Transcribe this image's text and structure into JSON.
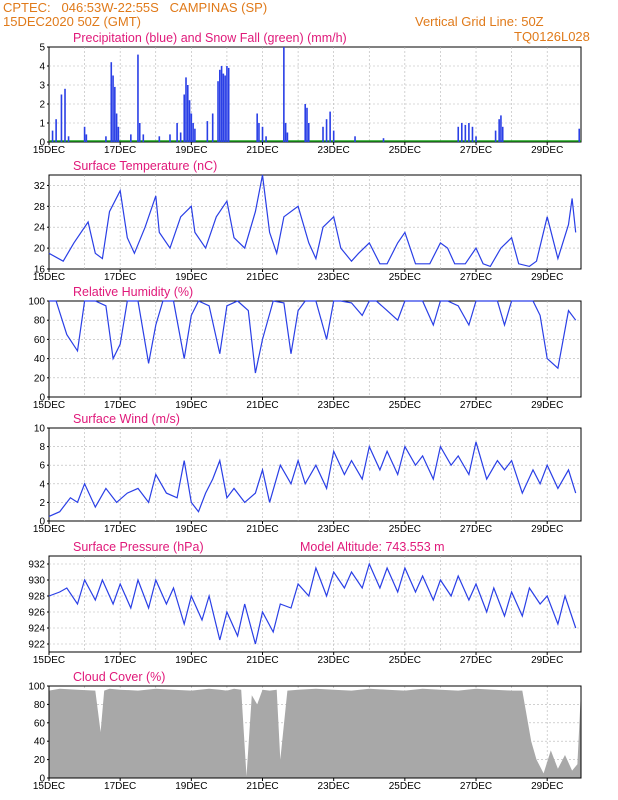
{
  "header": {
    "line1": "CPTEC:   046:53W-22:55S   CAMPINAS (SP)",
    "line2": "15DEC2020 50Z (GMT)",
    "right1": "Vertical Grid Line: 50Z",
    "right2": "TQ0126L028"
  },
  "colors": {
    "header": "#e07a1a",
    "title": "#e0197a",
    "line": "#2a3fe6",
    "snow": "#1aa01a",
    "cloud": "#a8a8a8"
  },
  "x_ticks": [
    "15DEC",
    "17DEC",
    "19DEC",
    "21DEC",
    "23DEC",
    "25DEC",
    "27DEC",
    "29DEC"
  ],
  "chart_data": [
    {
      "type": "bar",
      "title": "Precipitation (blue) and Snow Fall (green) (mm/h)",
      "ylim": [
        0,
        5
      ],
      "yticks": [
        0,
        1,
        2,
        3,
        4,
        5
      ],
      "grid": true,
      "series": [
        {
          "name": "Precipitation",
          "points": [
            [
              15.1,
              0.6
            ],
            [
              15.2,
              1.2
            ],
            [
              15.35,
              2.5
            ],
            [
              15.45,
              2.8
            ],
            [
              15.55,
              0.3
            ],
            [
              16.0,
              0.8
            ],
            [
              16.05,
              0.4
            ],
            [
              16.6,
              0.3
            ],
            [
              16.75,
              4.2
            ],
            [
              16.8,
              3.5
            ],
            [
              16.85,
              2.9
            ],
            [
              16.9,
              1.5
            ],
            [
              16.95,
              0.8
            ],
            [
              17.3,
              0.4
            ],
            [
              17.5,
              4.6
            ],
            [
              17.55,
              1.0
            ],
            [
              17.65,
              0.4
            ],
            [
              18.1,
              0.3
            ],
            [
              18.4,
              0.4
            ],
            [
              18.6,
              1.0
            ],
            [
              18.7,
              0.5
            ],
            [
              18.8,
              2.5
            ],
            [
              18.85,
              3.4
            ],
            [
              18.9,
              3.0
            ],
            [
              18.95,
              2.2
            ],
            [
              19.0,
              1.5
            ],
            [
              19.05,
              1.0
            ],
            [
              19.1,
              0.7
            ],
            [
              19.45,
              1.1
            ],
            [
              19.6,
              1.5
            ],
            [
              19.75,
              3.2
            ],
            [
              19.8,
              3.8
            ],
            [
              19.85,
              4.0
            ],
            [
              19.9,
              3.6
            ],
            [
              19.95,
              3.5
            ],
            [
              20.0,
              4.0
            ],
            [
              20.05,
              3.9
            ],
            [
              20.85,
              1.5
            ],
            [
              20.9,
              1.0
            ],
            [
              21.0,
              0.8
            ],
            [
              21.1,
              0.3
            ],
            [
              21.6,
              5.0
            ],
            [
              21.65,
              1.0
            ],
            [
              21.7,
              0.5
            ],
            [
              22.2,
              2.0
            ],
            [
              22.25,
              1.8
            ],
            [
              22.3,
              1.0
            ],
            [
              22.7,
              0.8
            ],
            [
              22.8,
              1.2
            ],
            [
              22.9,
              1.6
            ],
            [
              23.0,
              0.6
            ],
            [
              23.6,
              0.3
            ],
            [
              24.4,
              0.2
            ],
            [
              26.5,
              0.8
            ],
            [
              26.6,
              1.0
            ],
            [
              26.7,
              0.9
            ],
            [
              26.8,
              1.0
            ],
            [
              26.9,
              0.8
            ],
            [
              27.0,
              0.3
            ],
            [
              27.55,
              0.6
            ],
            [
              27.65,
              1.2
            ],
            [
              27.7,
              1.4
            ],
            [
              27.75,
              0.8
            ],
            [
              29.9,
              0.7
            ]
          ]
        },
        {
          "name": "Snow Fall",
          "points": []
        }
      ]
    },
    {
      "type": "line",
      "title": "Surface Temperature (nC)",
      "ylim": [
        16,
        34
      ],
      "yticks": [
        16,
        20,
        24,
        28,
        32
      ],
      "grid": true,
      "x": [
        15.0,
        15.4,
        15.7,
        16.1,
        16.3,
        16.5,
        16.7,
        17.0,
        17.2,
        17.4,
        17.7,
        18.0,
        18.1,
        18.4,
        18.7,
        19.0,
        19.1,
        19.4,
        19.7,
        20.0,
        20.2,
        20.5,
        20.8,
        21.0,
        21.2,
        21.4,
        21.6,
        22.0,
        22.3,
        22.5,
        22.7,
        23.0,
        23.2,
        23.5,
        23.7,
        24.0,
        24.3,
        24.5,
        24.8,
        25.0,
        25.3,
        25.5,
        25.7,
        26.0,
        26.2,
        26.4,
        26.7,
        27.0,
        27.2,
        27.4,
        27.7,
        28.0,
        28.2,
        28.5,
        28.7,
        29.0,
        29.3,
        29.6,
        29.7,
        29.8
      ],
      "values": [
        19,
        17.5,
        21,
        25,
        19,
        18,
        27,
        31,
        22,
        19,
        24,
        30,
        23,
        20,
        26,
        28,
        23,
        20,
        26,
        29,
        22,
        20,
        27,
        34,
        23,
        19,
        26,
        28,
        21,
        18,
        24,
        26,
        20,
        17.5,
        19,
        21,
        17,
        17,
        21,
        23,
        17,
        17,
        17,
        21,
        20,
        17,
        17,
        20,
        17,
        16.5,
        20,
        22,
        17,
        16.5,
        17.5,
        26,
        18,
        24.5,
        29.5,
        23
      ]
    },
    {
      "type": "line",
      "title": "Relative Humidity (%)",
      "ylim": [
        0,
        100
      ],
      "yticks": [
        0,
        20,
        40,
        60,
        80,
        100
      ],
      "grid": true,
      "x": [
        15.0,
        15.2,
        15.5,
        15.8,
        16.0,
        16.3,
        16.6,
        16.8,
        17.0,
        17.2,
        17.5,
        17.8,
        18.0,
        18.2,
        18.5,
        18.8,
        19.0,
        19.2,
        19.5,
        19.8,
        20.0,
        20.3,
        20.6,
        20.8,
        21.0,
        21.3,
        21.6,
        21.8,
        22.0,
        22.2,
        22.5,
        22.8,
        23.0,
        23.2,
        23.5,
        23.8,
        24.0,
        24.2,
        24.5,
        24.8,
        25.0,
        25.2,
        25.5,
        25.8,
        26.0,
        26.2,
        26.5,
        26.8,
        27.0,
        27.3,
        27.6,
        27.8,
        28.0,
        28.3,
        28.6,
        28.8,
        29.0,
        29.3,
        29.6,
        29.8
      ],
      "values": [
        100,
        100,
        65,
        48,
        100,
        100,
        95,
        40,
        55,
        100,
        100,
        35,
        75,
        100,
        100,
        40,
        85,
        100,
        95,
        45,
        95,
        100,
        90,
        25,
        60,
        100,
        98,
        45,
        90,
        100,
        100,
        60,
        100,
        100,
        98,
        85,
        100,
        100,
        90,
        80,
        100,
        100,
        100,
        75,
        100,
        100,
        95,
        75,
        100,
        100,
        100,
        75,
        100,
        100,
        100,
        85,
        40,
        30,
        90,
        80
      ]
    },
    {
      "type": "line",
      "title": "Surface Wind (m/s)",
      "ylim": [
        0,
        10
      ],
      "yticks": [
        0,
        2,
        4,
        6,
        8,
        10
      ],
      "grid": true,
      "x": [
        15.0,
        15.3,
        15.6,
        15.8,
        16.0,
        16.3,
        16.6,
        16.9,
        17.2,
        17.5,
        17.8,
        18.0,
        18.3,
        18.6,
        18.8,
        19.0,
        19.2,
        19.4,
        19.6,
        19.8,
        20.0,
        20.2,
        20.5,
        20.8,
        21.0,
        21.2,
        21.5,
        21.8,
        22.0,
        22.2,
        22.5,
        22.8,
        23.0,
        23.3,
        23.5,
        23.8,
        24.0,
        24.3,
        24.5,
        24.8,
        25.0,
        25.3,
        25.5,
        25.8,
        26.0,
        26.3,
        26.5,
        26.8,
        27.0,
        27.3,
        27.6,
        27.8,
        28.0,
        28.3,
        28.6,
        28.8,
        29.0,
        29.3,
        29.6,
        29.8
      ],
      "values": [
        0.5,
        1.0,
        2.5,
        2.0,
        4.0,
        1.5,
        3.5,
        2.0,
        3.0,
        3.5,
        2.0,
        5.0,
        3.0,
        2.5,
        6.5,
        2.0,
        1.0,
        3.0,
        4.5,
        6.5,
        2.5,
        3.5,
        2.0,
        3.0,
        5.5,
        2.0,
        6.0,
        4.0,
        6.5,
        4.0,
        6.0,
        3.5,
        7.5,
        5.0,
        6.5,
        4.5,
        8.0,
        5.5,
        7.5,
        5.0,
        8.0,
        6.0,
        7.0,
        4.5,
        8.0,
        6.0,
        7.0,
        5.0,
        8.5,
        4.5,
        6.5,
        5.5,
        6.5,
        3.0,
        5.5,
        4.0,
        6.0,
        3.5,
        5.5,
        3.0
      ]
    },
    {
      "type": "line",
      "title": "Surface Pressure (hPa)",
      "annotation": "Model Altitude: 743.553  m",
      "ylim": [
        921,
        933
      ],
      "yticks": [
        922,
        924,
        926,
        928,
        930,
        932
      ],
      "grid": true,
      "x": [
        15.0,
        15.3,
        15.5,
        15.8,
        16.0,
        16.3,
        16.5,
        16.8,
        17.0,
        17.3,
        17.5,
        17.8,
        18.0,
        18.3,
        18.5,
        18.8,
        19.0,
        19.3,
        19.5,
        19.8,
        20.0,
        20.3,
        20.5,
        20.8,
        21.0,
        21.3,
        21.5,
        21.8,
        22.0,
        22.3,
        22.5,
        22.8,
        23.0,
        23.3,
        23.5,
        23.8,
        24.0,
        24.3,
        24.5,
        24.8,
        25.0,
        25.3,
        25.5,
        25.8,
        26.0,
        26.3,
        26.5,
        26.8,
        27.0,
        27.3,
        27.5,
        27.8,
        28.0,
        28.3,
        28.5,
        28.8,
        29.0,
        29.3,
        29.5,
        29.8
      ],
      "values": [
        928,
        928.5,
        929,
        927,
        930,
        927.5,
        930,
        927,
        929.5,
        926.5,
        930,
        926.5,
        930,
        927,
        929,
        924.5,
        928,
        925,
        928,
        922.5,
        926,
        923,
        927,
        922,
        926,
        923.5,
        927,
        926.5,
        929.5,
        928,
        931.5,
        928,
        931,
        929,
        931,
        929,
        932,
        929,
        931.5,
        928.5,
        931.5,
        928.5,
        930.5,
        927.5,
        930,
        928,
        930.5,
        927.5,
        929.5,
        926,
        929,
        925.5,
        928.5,
        925.5,
        929,
        927,
        928,
        924.5,
        928,
        924
      ]
    },
    {
      "type": "area",
      "title": "Cloud Cover (%)",
      "ylim": [
        0,
        100
      ],
      "yticks": [
        0,
        20,
        40,
        60,
        80,
        100
      ],
      "grid": true,
      "x": [
        15.0,
        15.3,
        15.8,
        16.3,
        16.45,
        16.55,
        16.7,
        17.0,
        17.5,
        18.0,
        18.5,
        19.0,
        19.5,
        19.8,
        20.0,
        20.2,
        20.4,
        20.55,
        20.7,
        20.85,
        21.0,
        21.2,
        21.4,
        21.5,
        21.7,
        22.0,
        22.5,
        23.0,
        23.5,
        24.0,
        24.5,
        25.0,
        25.5,
        26.0,
        26.5,
        27.0,
        27.5,
        28.0,
        28.3,
        28.55,
        28.7,
        28.9,
        29.1,
        29.3,
        29.5,
        29.7,
        29.85,
        29.95
      ],
      "values": [
        95,
        97,
        96,
        95,
        50,
        95,
        97,
        96,
        95,
        97,
        96,
        95,
        97,
        96,
        95,
        97,
        96,
        2,
        90,
        80,
        96,
        95,
        96,
        20,
        95,
        96,
        97,
        96,
        95,
        97,
        96,
        95,
        97,
        96,
        95,
        97,
        96,
        95,
        95,
        40,
        20,
        5,
        30,
        10,
        25,
        8,
        15,
        95
      ]
    }
  ]
}
